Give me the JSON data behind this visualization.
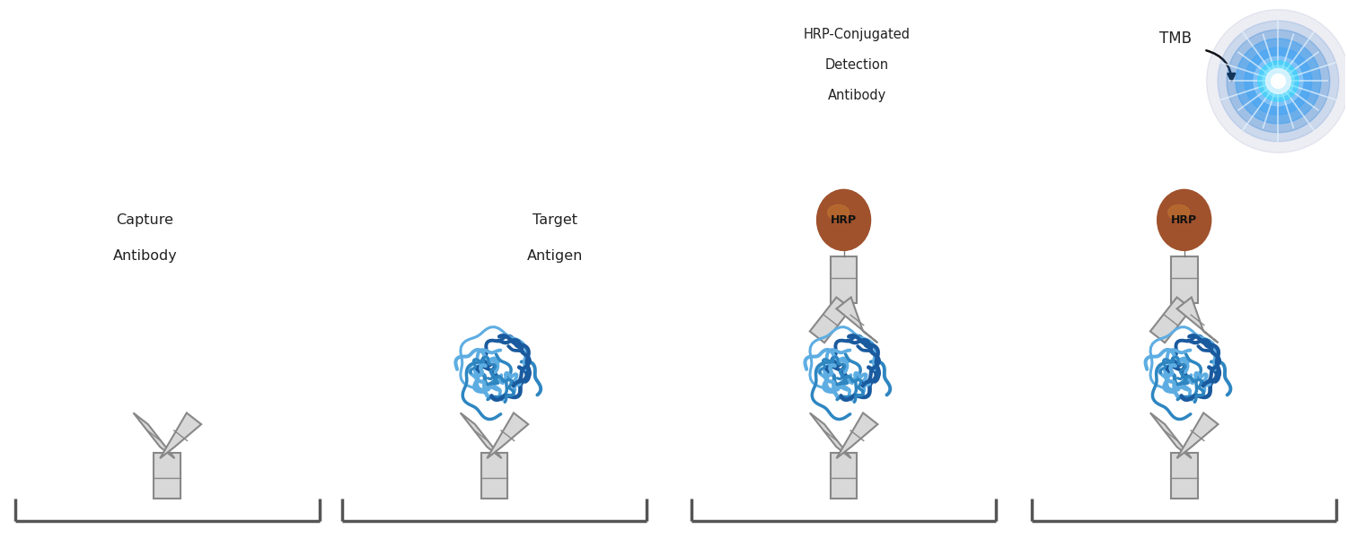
{
  "background_color": "#ffffff",
  "fig_width": 15.0,
  "fig_height": 6.0,
  "panel_centers": [
    1.85,
    5.5,
    9.4,
    13.2
  ],
  "labels": {
    "capture_antibody": [
      "Capture",
      "Antibody"
    ],
    "target_antigen": [
      "Target",
      "Antigen"
    ],
    "hrp_detection": [
      "HRP-Conjugated",
      "Detection",
      "Antibody"
    ],
    "tmb": "TMB",
    "hrp": "HRP"
  },
  "ab_fill": "#d8d8d8",
  "ab_edge": "#888888",
  "antigen_dark": "#1a5a9e",
  "antigen_mid": "#2e86c1",
  "antigen_light": "#5dade2",
  "hrp_color": "#a0522d",
  "hrp_highlight": "#c47830",
  "hrp_shadow": "#7a3a10",
  "bracket_color": "#555555",
  "text_color": "#222222",
  "arrow_color": "#111111"
}
